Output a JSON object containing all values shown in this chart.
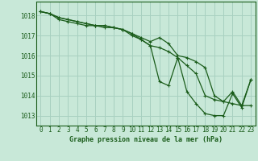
{
  "title": "Graphe pression niveau de la mer (hPa)",
  "bg_color": "#c8e8d8",
  "grid_color": "#a8d0c0",
  "line_color": "#1a5c1a",
  "xlim": [
    -0.5,
    23.5
  ],
  "ylim": [
    1012.5,
    1018.7
  ],
  "yticks": [
    1013,
    1014,
    1015,
    1016,
    1017,
    1018
  ],
  "xticks": [
    0,
    1,
    2,
    3,
    4,
    5,
    6,
    7,
    8,
    9,
    10,
    11,
    12,
    13,
    14,
    15,
    16,
    17,
    18,
    19,
    20,
    21,
    22,
    23
  ],
  "series1_x": [
    0,
    1,
    2,
    3,
    4,
    5,
    6,
    7,
    8,
    9,
    10,
    11,
    12,
    13,
    14,
    15,
    16,
    17,
    18,
    19,
    20,
    21,
    22,
    23
  ],
  "series1_y": [
    1018.2,
    1018.1,
    1017.8,
    1017.7,
    1017.6,
    1017.5,
    1017.5,
    1017.4,
    1017.4,
    1017.3,
    1017.0,
    1016.8,
    1016.5,
    1016.4,
    1016.2,
    1015.9,
    1015.5,
    1015.1,
    1014.0,
    1013.8,
    1013.7,
    1013.6,
    1013.5,
    1013.5
  ],
  "series2_x": [
    0,
    1,
    2,
    3,
    4,
    5,
    6,
    7,
    8,
    9,
    10,
    11,
    12,
    13,
    14,
    15,
    16,
    17,
    18,
    19,
    20,
    21,
    22,
    23
  ],
  "series2_y": [
    1018.2,
    1018.1,
    1017.9,
    1017.8,
    1017.7,
    1017.6,
    1017.5,
    1017.5,
    1017.4,
    1017.3,
    1017.1,
    1016.9,
    1016.7,
    1016.9,
    1016.6,
    1016.0,
    1015.9,
    1015.7,
    1015.4,
    1014.0,
    1013.7,
    1014.2,
    1013.5,
    1014.8
  ],
  "series3_x": [
    0,
    1,
    2,
    3,
    4,
    5,
    6,
    7,
    8,
    9,
    10,
    11,
    12,
    13,
    14,
    15,
    16,
    17,
    18,
    19,
    20,
    21,
    22,
    23
  ],
  "series3_y": [
    1018.2,
    1018.1,
    1017.9,
    1017.8,
    1017.7,
    1017.6,
    1017.5,
    1017.5,
    1017.4,
    1017.3,
    1017.1,
    1016.8,
    1016.5,
    1014.7,
    1014.5,
    1015.9,
    1014.2,
    1013.6,
    1013.1,
    1013.0,
    1013.0,
    1014.1,
    1013.4,
    1014.8
  ],
  "ylabel_fontsize": 5.5,
  "xlabel_fontsize": 5.5,
  "title_fontsize": 6.0
}
